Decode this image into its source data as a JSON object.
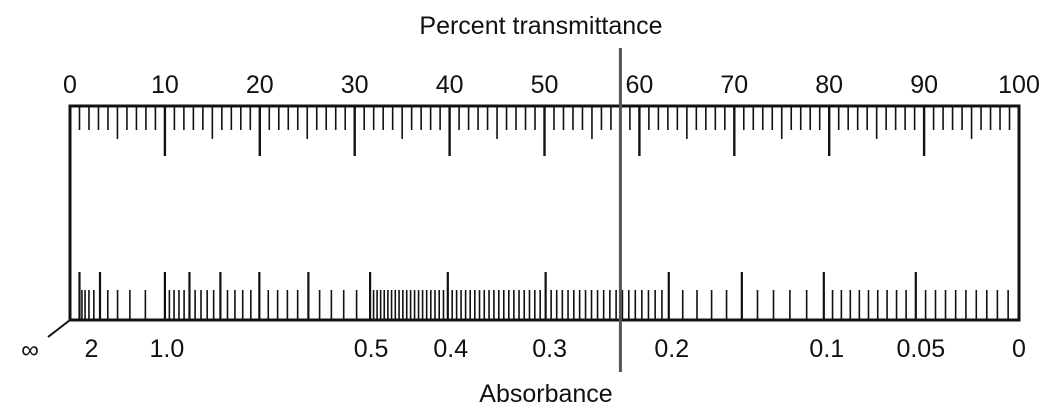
{
  "title_top": "Percent transmittance",
  "title_bottom": "Absorbance",
  "transmittance_labels": [
    "0",
    "10",
    "20",
    "30",
    "40",
    "50",
    "60",
    "70",
    "80",
    "90",
    "100"
  ],
  "transmittance_values": [
    0,
    10,
    20,
    30,
    40,
    50,
    60,
    70,
    80,
    90,
    100
  ],
  "absorbance_labels": [
    {
      "text": "∞",
      "value": null
    },
    {
      "text": "2",
      "value": 2
    },
    {
      "text": "1.0",
      "value": 1.0
    },
    {
      "text": "0.5",
      "value": 0.5
    },
    {
      "text": "0.4",
      "value": 0.4
    },
    {
      "text": "0.3",
      "value": 0.3
    },
    {
      "text": "0.2",
      "value": 0.2
    },
    {
      "text": "0.1",
      "value": 0.1
    },
    {
      "text": "0.05",
      "value": 0.05
    },
    {
      "text": "0",
      "value": 0
    }
  ],
  "indicator_transmittance": 58,
  "colors": {
    "ink": "#111111",
    "indicator": "#555555"
  }
}
